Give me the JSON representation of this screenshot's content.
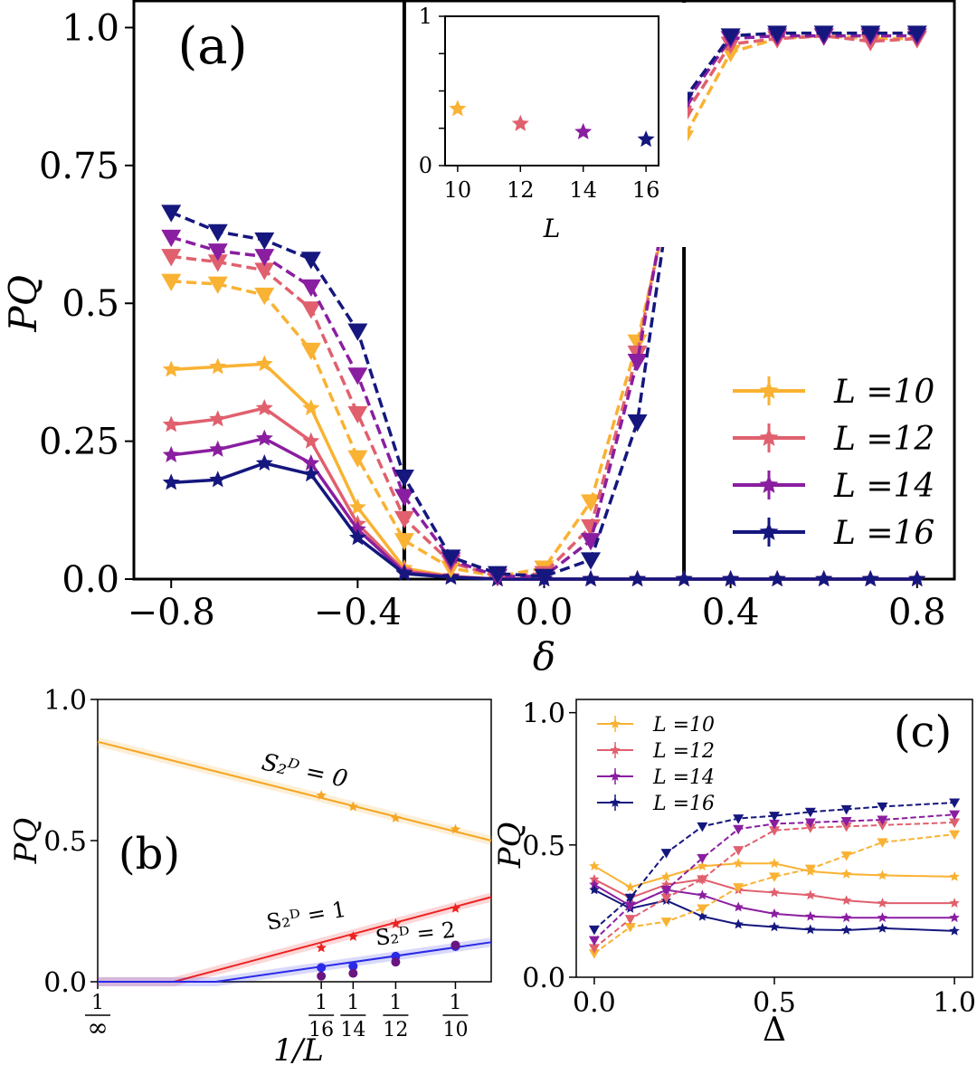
{
  "colors": {
    "L10": "#f9b233",
    "L12": "#e0606e",
    "L14": "#8a1ea0",
    "L16": "#15177e",
    "orange": "#f5a623",
    "red": "#ee2222",
    "blue": "#2a2ae8",
    "purple": "#6a1580"
  },
  "chart_data": [
    {
      "panel": "(a)",
      "type": "line",
      "xlabel": "δ",
      "ylabel": "P^Q",
      "xlim": [
        -0.88,
        0.88
      ],
      "ylim": [
        0,
        1.05
      ],
      "xticks": [
        "−0.8",
        "−0.4",
        "0.0",
        "0.4",
        "0.8"
      ],
      "yticks": [
        "0.0",
        "0.25",
        "0.5",
        "0.75",
        "1.0"
      ],
      "vlines": [
        -0.3,
        0.3
      ],
      "legend": {
        "placement": "lower-right",
        "entries": [
          "L =10",
          "L =12",
          "L =14",
          "L =16"
        ]
      },
      "x": [
        -0.8,
        -0.7,
        -0.6,
        -0.5,
        -0.4,
        -0.3,
        -0.2,
        -0.1,
        0.0,
        0.1,
        0.2,
        0.3,
        0.4,
        0.5,
        0.6,
        0.7,
        0.8
      ],
      "series": [
        {
          "name": "L =10",
          "style": "solid-star",
          "values": [
            0.38,
            0.385,
            0.39,
            0.31,
            0.13,
            0.02,
            0.005,
            0.0,
            0.0,
            0.0,
            0.0,
            0.0,
            0.0,
            0.0,
            0.0,
            0.0,
            0.0
          ]
        },
        {
          "name": "L =12",
          "style": "solid-star",
          "values": [
            0.28,
            0.29,
            0.31,
            0.25,
            0.1,
            0.015,
            0.005,
            0.0,
            0.0,
            0.0,
            0.0,
            0.0,
            0.0,
            0.0,
            0.0,
            0.0,
            0.0
          ]
        },
        {
          "name": "L =14",
          "style": "solid-star",
          "values": [
            0.225,
            0.235,
            0.255,
            0.21,
            0.09,
            0.012,
            0.004,
            0.0,
            0.0,
            0.0,
            0.0,
            0.0,
            0.0,
            0.0,
            0.0,
            0.0,
            0.0
          ]
        },
        {
          "name": "L =16",
          "style": "solid-star",
          "values": [
            0.175,
            0.18,
            0.21,
            0.19,
            0.075,
            0.01,
            0.003,
            0.0,
            0.0,
            0.0,
            0.0,
            0.0,
            0.0,
            0.0,
            0.0,
            0.0,
            0.0
          ]
        },
        {
          "name": "L =10",
          "style": "dashed-triangle",
          "values": [
            0.54,
            0.535,
            0.515,
            0.415,
            0.22,
            0.07,
            0.02,
            0.005,
            0.02,
            0.14,
            0.43,
            0.8,
            0.955,
            0.98,
            0.985,
            0.98,
            0.98
          ]
        },
        {
          "name": "L =12",
          "style": "dashed-triangle",
          "values": [
            0.585,
            0.575,
            0.56,
            0.49,
            0.3,
            0.11,
            0.03,
            0.005,
            0.01,
            0.095,
            0.41,
            0.84,
            0.97,
            0.98,
            0.985,
            0.975,
            0.98
          ]
        },
        {
          "name": "L =14",
          "style": "dashed-triangle",
          "values": [
            0.62,
            0.595,
            0.585,
            0.53,
            0.37,
            0.15,
            0.035,
            0.005,
            0.005,
            0.07,
            0.395,
            0.86,
            0.98,
            0.985,
            0.985,
            0.985,
            0.985
          ]
        },
        {
          "name": "L =16",
          "style": "dashed-triangle",
          "values": [
            0.665,
            0.63,
            0.615,
            0.58,
            0.45,
            0.185,
            0.04,
            0.01,
            0.005,
            0.035,
            0.285,
            0.87,
            0.985,
            0.99,
            0.99,
            0.99,
            0.99
          ]
        }
      ],
      "inset": {
        "type": "scatter",
        "xlabel": "L",
        "xticks": [
          "10",
          "12",
          "14",
          "16"
        ],
        "yticks": [
          "0",
          "1"
        ],
        "x": [
          10,
          12,
          14,
          16
        ],
        "values": [
          0.38,
          0.28,
          0.225,
          0.175
        ]
      }
    },
    {
      "panel": "(b)",
      "type": "line",
      "xlabel": "1/L",
      "ylabel": "P^Q",
      "xlim": [
        0,
        0.11
      ],
      "ylim": [
        0,
        1
      ],
      "yticks": [
        "0.0",
        "0.5",
        "1.0"
      ],
      "xtick_labels": [
        {
          "num": "1",
          "den": "∞",
          "x": 0
        },
        {
          "num": "1",
          "den": "16",
          "x": 0.0625
        },
        {
          "num": "1",
          "den": "14",
          "x": 0.0714
        },
        {
          "num": "1",
          "den": "12",
          "x": 0.0833
        },
        {
          "num": "1",
          "den": "10",
          "x": 0.1
        }
      ],
      "annotations": [
        "S₂ᴰ = 0",
        "S₂ᴰ = 1",
        "S₂ᴰ = 2"
      ],
      "series": [
        {
          "name": "S₂ᴰ = 0",
          "x": [
            0.0625,
            0.0714,
            0.0833,
            0.1
          ],
          "values": [
            0.66,
            0.62,
            0.58,
            0.54
          ],
          "fit": [
            [
              0,
              0.85
            ],
            [
              0.11,
              0.5
            ]
          ]
        },
        {
          "name": "S₂ᴰ = 1",
          "x": [
            0.0625,
            0.0714,
            0.0833,
            0.1
          ],
          "values": [
            0.12,
            0.16,
            0.205,
            0.26
          ],
          "fit": [
            [
              0.0,
              0.0
            ],
            [
              0.0213,
              0.0
            ],
            [
              0.11,
              0.3
            ]
          ]
        },
        {
          "name": "S₂ᴰ = 2",
          "x": [
            0.0625,
            0.0714,
            0.0833,
            0.1
          ],
          "values": [
            0.05,
            0.055,
            0.09,
            0.125
          ],
          "fit": [
            [
              0.0,
              0.0
            ],
            [
              0.033,
              0.0
            ],
            [
              0.11,
              0.14
            ]
          ]
        },
        {
          "name": "purple",
          "x": [
            0.0625,
            0.0714,
            0.0833,
            0.1
          ],
          "values": [
            0.02,
            0.03,
            0.07,
            0.13
          ]
        }
      ]
    },
    {
      "panel": "(c)",
      "type": "line",
      "xlabel": "Δ",
      "ylabel": "P^Q",
      "xlim": [
        -0.05,
        1.05
      ],
      "ylim": [
        0,
        1.05
      ],
      "xticks": [
        "0.0",
        "0.5",
        "1.0"
      ],
      "yticks": [
        "0.0",
        "0.5",
        "1.0"
      ],
      "legend": {
        "placement": "top-left",
        "entries": [
          "L =10",
          "L =12",
          "L =14",
          "L =16"
        ]
      },
      "x": [
        0.0,
        0.1,
        0.2,
        0.3,
        0.4,
        0.5,
        0.6,
        0.7,
        0.8,
        1.0
      ],
      "series": [
        {
          "name": "L =10",
          "style": "solid-star",
          "values": [
            0.42,
            0.34,
            0.38,
            0.42,
            0.43,
            0.43,
            0.4,
            0.39,
            0.385,
            0.38
          ]
        },
        {
          "name": "L =12",
          "style": "solid-star",
          "values": [
            0.37,
            0.3,
            0.35,
            0.37,
            0.33,
            0.32,
            0.31,
            0.29,
            0.28,
            0.28
          ]
        },
        {
          "name": "L =14",
          "style": "solid-star",
          "values": [
            0.35,
            0.27,
            0.33,
            0.31,
            0.265,
            0.24,
            0.23,
            0.225,
            0.225,
            0.225
          ]
        },
        {
          "name": "L =16",
          "style": "solid-star",
          "values": [
            0.33,
            0.26,
            0.29,
            0.23,
            0.2,
            0.19,
            0.18,
            0.178,
            0.185,
            0.175
          ]
        },
        {
          "name": "L =10",
          "style": "dashed-triangle",
          "values": [
            0.09,
            0.19,
            0.21,
            0.26,
            0.34,
            0.38,
            0.41,
            0.46,
            0.51,
            0.54
          ]
        },
        {
          "name": "L =12",
          "style": "dashed-triangle",
          "values": [
            0.11,
            0.22,
            0.3,
            0.37,
            0.48,
            0.555,
            0.565,
            0.57,
            0.575,
            0.585
          ]
        },
        {
          "name": "L =14",
          "style": "dashed-triangle",
          "values": [
            0.14,
            0.27,
            0.33,
            0.45,
            0.56,
            0.58,
            0.585,
            0.59,
            0.595,
            0.615
          ]
        },
        {
          "name": "L =16",
          "style": "dashed-triangle",
          "values": [
            0.18,
            0.3,
            0.47,
            0.57,
            0.6,
            0.61,
            0.625,
            0.635,
            0.645,
            0.66
          ]
        }
      ]
    }
  ]
}
